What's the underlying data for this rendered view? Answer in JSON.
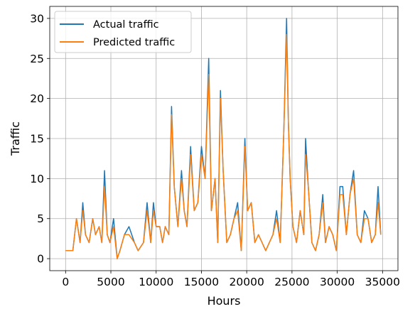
{
  "chart_data": {
    "type": "line",
    "title": "",
    "xlabel": "Hours",
    "ylabel": "Traffic",
    "xlim": [
      -1750,
      36700
    ],
    "ylim": [
      -1.5,
      31.5
    ],
    "xticks": [
      0,
      5000,
      10000,
      15000,
      20000,
      25000,
      30000,
      35000
    ],
    "yticks": [
      0,
      5,
      10,
      15,
      20,
      25,
      30
    ],
    "grid": true,
    "legend_position": "top-left",
    "series": [
      {
        "name": "Actual traffic",
        "color": "#1f77b4",
        "x": [
          0,
          800,
          1200,
          1600,
          1900,
          2200,
          2600,
          3000,
          3300,
          3700,
          4000,
          4300,
          4600,
          4900,
          5300,
          5700,
          6000,
          6500,
          7000,
          7600,
          8000,
          8600,
          9000,
          9400,
          9700,
          10000,
          10400,
          10700,
          11000,
          11400,
          11700,
          12000,
          12400,
          12800,
          13100,
          13400,
          13800,
          14200,
          14600,
          15000,
          15400,
          15800,
          16100,
          16500,
          16800,
          17100,
          17400,
          17800,
          18200,
          18600,
          19000,
          19400,
          19800,
          20100,
          20500,
          20900,
          21300,
          21700,
          22100,
          22500,
          22900,
          23300,
          23700,
          24100,
          24400,
          24600,
          24800,
          25100,
          25500,
          25900,
          26300,
          26500,
          26800,
          27200,
          27600,
          28000,
          28400,
          28700,
          29100,
          29500,
          29900,
          30300,
          30600,
          31000,
          31400,
          31800,
          32200,
          32600,
          33000,
          33400,
          33800,
          34200,
          34500,
          34800
        ],
        "values": [
          1,
          1,
          5,
          2,
          7,
          3,
          2,
          5,
          3,
          4,
          2,
          11,
          3,
          2,
          5,
          0,
          1,
          3,
          4,
          2,
          1,
          2,
          7,
          2,
          7,
          4,
          4,
          2,
          4,
          3,
          19,
          9,
          4,
          11,
          6,
          4,
          14,
          6,
          7,
          14,
          10,
          25,
          6,
          10,
          2,
          21,
          11,
          2,
          3,
          5,
          7,
          1,
          15,
          6,
          7,
          2,
          3,
          2,
          1,
          2,
          3,
          6,
          2,
          16,
          30,
          17,
          10,
          4,
          2,
          6,
          3,
          15,
          9,
          2,
          1,
          3,
          8,
          2,
          4,
          3,
          1,
          9,
          9,
          3,
          8,
          11,
          3,
          2,
          6,
          5,
          2,
          3,
          9,
          3
        ]
      },
      {
        "name": "Predicted traffic",
        "color": "#ff7f0e",
        "x": [
          0,
          800,
          1200,
          1600,
          1900,
          2200,
          2600,
          3000,
          3300,
          3700,
          4000,
          4300,
          4600,
          4900,
          5300,
          5700,
          6000,
          6500,
          7000,
          7600,
          8000,
          8600,
          9000,
          9400,
          9700,
          10000,
          10400,
          10700,
          11000,
          11400,
          11700,
          12000,
          12400,
          12800,
          13100,
          13400,
          13800,
          14200,
          14600,
          15000,
          15400,
          15800,
          16100,
          16500,
          16800,
          17100,
          17400,
          17800,
          18200,
          18600,
          19000,
          19400,
          19800,
          20100,
          20500,
          20900,
          21300,
          21700,
          22100,
          22500,
          22900,
          23300,
          23700,
          24100,
          24400,
          24600,
          24800,
          25100,
          25500,
          25900,
          26300,
          26500,
          26800,
          27200,
          27600,
          28000,
          28400,
          28700,
          29100,
          29500,
          29900,
          30300,
          30600,
          31000,
          31400,
          31800,
          32200,
          32600,
          33000,
          33400,
          33800,
          34200,
          34500,
          34800
        ],
        "values": [
          1,
          1,
          5,
          2,
          6,
          3,
          2,
          5,
          3,
          4,
          2,
          9,
          3,
          2,
          4,
          0,
          1,
          3,
          3,
          2,
          1,
          2,
          6,
          2,
          6,
          4,
          4,
          2,
          4,
          3,
          18,
          9,
          4,
          10,
          6,
          4,
          13,
          6,
          7,
          13,
          10,
          23,
          6,
          10,
          2,
          20,
          11,
          2,
          3,
          5,
          6,
          1,
          14,
          6,
          7,
          2,
          3,
          2,
          1,
          2,
          3,
          5,
          2,
          16,
          28,
          17,
          10,
          4,
          2,
          6,
          3,
          13,
          9,
          2,
          1,
          3,
          7,
          2,
          4,
          3,
          1,
          8,
          8,
          3,
          8,
          10,
          3,
          2,
          5,
          5,
          2,
          3,
          7,
          3
        ]
      }
    ]
  }
}
